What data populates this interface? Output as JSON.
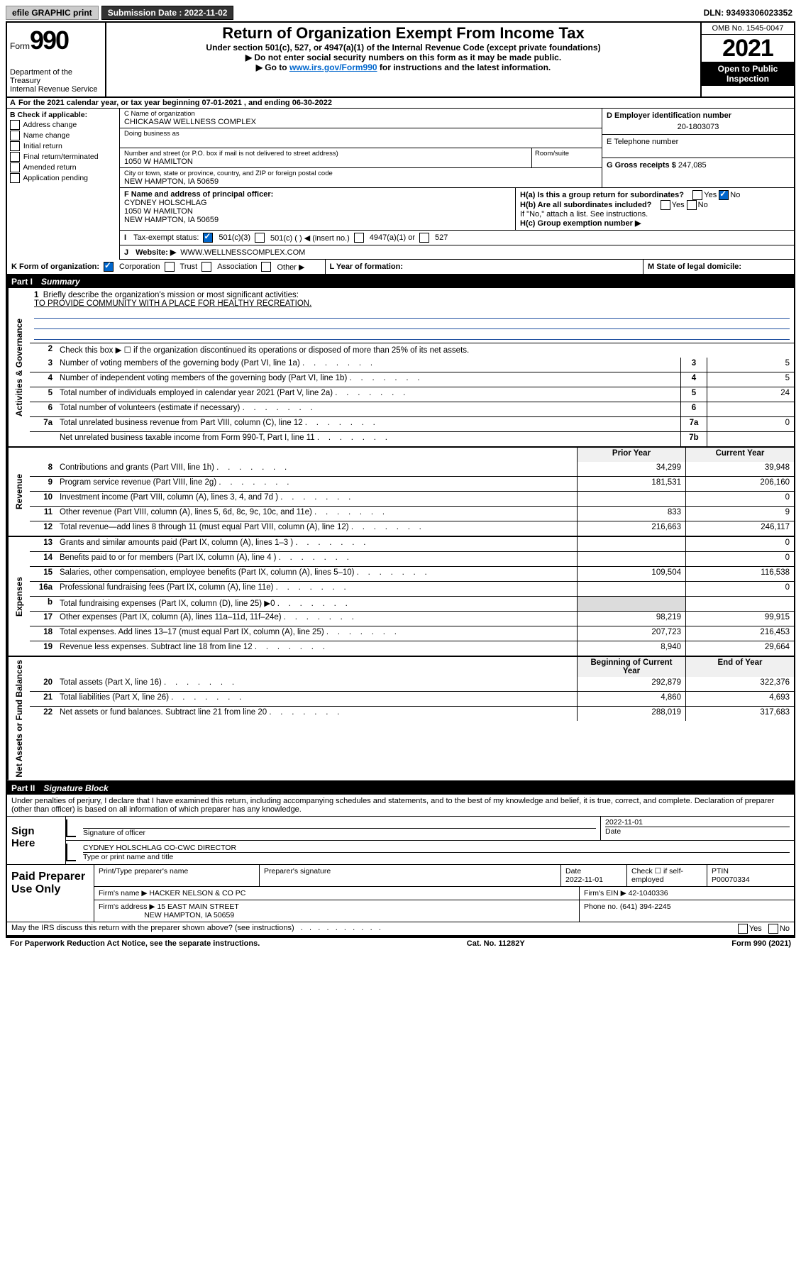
{
  "topbar": {
    "efile": "efile GRAPHIC print",
    "sub_label": "Submission Date : 2022-11-02",
    "dln": "DLN: 93493306023352"
  },
  "header": {
    "form_word": "Form",
    "form_num": "990",
    "dept": "Department of the Treasury",
    "irs": "Internal Revenue Service",
    "title": "Return of Organization Exempt From Income Tax",
    "sub1": "Under section 501(c), 527, or 4947(a)(1) of the Internal Revenue Code (except private foundations)",
    "sub2": "▶ Do not enter social security numbers on this form as it may be made public.",
    "sub3_pre": "▶ Go to ",
    "sub3_link": "www.irs.gov/Form990",
    "sub3_post": " for instructions and the latest information.",
    "omb": "OMB No. 1545-0047",
    "year": "2021",
    "open": "Open to Public Inspection"
  },
  "rowA": "For the 2021 calendar year, or tax year beginning 07-01-2021   , and ending 06-30-2022",
  "B": {
    "label": "B Check if applicable:",
    "opts": [
      "Address change",
      "Name change",
      "Initial return",
      "Final return/terminated",
      "Amended return",
      "Application pending"
    ]
  },
  "C": {
    "name_lbl": "C Name of organization",
    "name": "CHICKASAW WELLNESS COMPLEX",
    "dba_lbl": "Doing business as",
    "addr_lbl": "Number and street (or P.O. box if mail is not delivered to street address)",
    "addr": "1050 W HAMILTON",
    "room_lbl": "Room/suite",
    "city_lbl": "City or town, state or province, country, and ZIP or foreign postal code",
    "city": "NEW HAMPTON, IA  50659"
  },
  "D": {
    "lbl": "D Employer identification number",
    "val": "20-1803073"
  },
  "E": {
    "lbl": "E Telephone number",
    "val": ""
  },
  "G": {
    "lbl": "G Gross receipts $",
    "val": "247,085"
  },
  "F": {
    "lbl": "F  Name and address of principal officer:",
    "l1": "CYDNEY HOLSCHLAG",
    "l2": "1050 W HAMILTON",
    "l3": "NEW HAMPTON, IA  50659"
  },
  "H": {
    "a": "H(a)  Is this a group return for subordinates?",
    "b": "H(b)  Are all subordinates included?",
    "b2": "If \"No,\" attach a list. See instructions.",
    "c": "H(c)  Group exemption number ▶",
    "yes": "Yes",
    "no": "No"
  },
  "I": {
    "lbl": "Tax-exempt status:",
    "o1": "501(c)(3)",
    "o2": "501(c) (  ) ◀ (insert no.)",
    "o3": "4947(a)(1) or",
    "o4": "527"
  },
  "J": {
    "lbl": "Website: ▶",
    "val": "WWW.WELLNESSCOMPLEX.COM"
  },
  "K": {
    "lbl": "K Form of organization:",
    "o1": "Corporation",
    "o2": "Trust",
    "o3": "Association",
    "o4": "Other ▶"
  },
  "L": "L Year of formation:",
  "M": "M State of legal domicile:",
  "partI": {
    "num": "Part I",
    "title": "Summary"
  },
  "mission": {
    "q": "Briefly describe the organization's mission or most significant activities:",
    "a": "TO PROVIDE COMMUNITY WITH A PLACE FOR HEALTHY RECREATION."
  },
  "line2": "Check this box ▶ ☐  if the organization discontinued its operations or disposed of more than 25% of its net assets.",
  "gov_lines": [
    {
      "n": "3",
      "t": "Number of voting members of the governing body (Part VI, line 1a)",
      "bn": "3",
      "v": "5"
    },
    {
      "n": "4",
      "t": "Number of independent voting members of the governing body (Part VI, line 1b)",
      "bn": "4",
      "v": "5"
    },
    {
      "n": "5",
      "t": "Total number of individuals employed in calendar year 2021 (Part V, line 2a)",
      "bn": "5",
      "v": "24"
    },
    {
      "n": "6",
      "t": "Total number of volunteers (estimate if necessary)",
      "bn": "6",
      "v": ""
    },
    {
      "n": "7a",
      "t": "Total unrelated business revenue from Part VIII, column (C), line 12",
      "bn": "7a",
      "v": "0"
    },
    {
      "n": "",
      "t": "Net unrelated business taxable income from Form 990-T, Part I, line 11",
      "bn": "7b",
      "v": ""
    }
  ],
  "col_hdr": {
    "prior": "Prior Year",
    "current": "Current Year"
  },
  "rev_lines": [
    {
      "n": "8",
      "t": "Contributions and grants (Part VIII, line 1h)",
      "p": "34,299",
      "c": "39,948"
    },
    {
      "n": "9",
      "t": "Program service revenue (Part VIII, line 2g)",
      "p": "181,531",
      "c": "206,160"
    },
    {
      "n": "10",
      "t": "Investment income (Part VIII, column (A), lines 3, 4, and 7d )",
      "p": "",
      "c": "0"
    },
    {
      "n": "11",
      "t": "Other revenue (Part VIII, column (A), lines 5, 6d, 8c, 9c, 10c, and 11e)",
      "p": "833",
      "c": "9"
    },
    {
      "n": "12",
      "t": "Total revenue—add lines 8 through 11 (must equal Part VIII, column (A), line 12)",
      "p": "216,663",
      "c": "246,117"
    }
  ],
  "exp_lines": [
    {
      "n": "13",
      "t": "Grants and similar amounts paid (Part IX, column (A), lines 1–3 )",
      "p": "",
      "c": "0"
    },
    {
      "n": "14",
      "t": "Benefits paid to or for members (Part IX, column (A), line 4 )",
      "p": "",
      "c": "0"
    },
    {
      "n": "15",
      "t": "Salaries, other compensation, employee benefits (Part IX, column (A), lines 5–10)",
      "p": "109,504",
      "c": "116,538"
    },
    {
      "n": "16a",
      "t": "Professional fundraising fees (Part IX, column (A), line 11e)",
      "p": "",
      "c": "0"
    },
    {
      "n": "b",
      "t": "Total fundraising expenses (Part IX, column (D), line 25) ▶0",
      "p": "shade",
      "c": "shade"
    },
    {
      "n": "17",
      "t": "Other expenses (Part IX, column (A), lines 11a–11d, 11f–24e)",
      "p": "98,219",
      "c": "99,915"
    },
    {
      "n": "18",
      "t": "Total expenses. Add lines 13–17 (must equal Part IX, column (A), line 25)",
      "p": "207,723",
      "c": "216,453"
    },
    {
      "n": "19",
      "t": "Revenue less expenses. Subtract line 18 from line 12",
      "p": "8,940",
      "c": "29,664"
    }
  ],
  "na_hdr": {
    "b": "Beginning of Current Year",
    "e": "End of Year"
  },
  "na_lines": [
    {
      "n": "20",
      "t": "Total assets (Part X, line 16)",
      "p": "292,879",
      "c": "322,376"
    },
    {
      "n": "21",
      "t": "Total liabilities (Part X, line 26)",
      "p": "4,860",
      "c": "4,693"
    },
    {
      "n": "22",
      "t": "Net assets or fund balances. Subtract line 21 from line 20",
      "p": "288,019",
      "c": "317,683"
    }
  ],
  "partII": {
    "num": "Part II",
    "title": "Signature Block"
  },
  "sig": {
    "decl": "Under penalties of perjury, I declare that I have examined this return, including accompanying schedules and statements, and to the best of my knowledge and belief, it is true, correct, and complete. Declaration of preparer (other than officer) is based on all information of which preparer has any knowledge.",
    "sign_here": "Sign Here",
    "sig_officer": "Signature of officer",
    "date": "Date",
    "date_val": "2022-11-01",
    "name_title": "CYDNEY HOLSCHLAG  CO-CWC DIRECTOR",
    "name_lbl": "Type or print name and title"
  },
  "paid": {
    "title": "Paid Preparer Use Only",
    "h1": "Print/Type preparer's name",
    "h2": "Preparer's signature",
    "h3": "Date",
    "h3v": "2022-11-01",
    "h4": "Check ☐ if self-employed",
    "h5": "PTIN",
    "h5v": "P00070334",
    "firm_name_lbl": "Firm's name    ▶",
    "firm_name": "HACKER NELSON & CO PC",
    "firm_ein_lbl": "Firm's EIN ▶",
    "firm_ein": "42-1040336",
    "firm_addr_lbl": "Firm's address ▶",
    "firm_addr1": "15 EAST MAIN STREET",
    "firm_addr2": "NEW HAMPTON, IA  50659",
    "phone_lbl": "Phone no.",
    "phone": "(641) 394-2245"
  },
  "discuss": "May the IRS discuss this return with the preparer shown above? (see instructions)",
  "footer": {
    "pra": "For Paperwork Reduction Act Notice, see the separate instructions.",
    "cat": "Cat. No. 11282Y",
    "form": "Form 990 (2021)"
  },
  "vlabels": {
    "gov": "Activities & Governance",
    "rev": "Revenue",
    "exp": "Expenses",
    "na": "Net Assets or Fund Balances"
  }
}
